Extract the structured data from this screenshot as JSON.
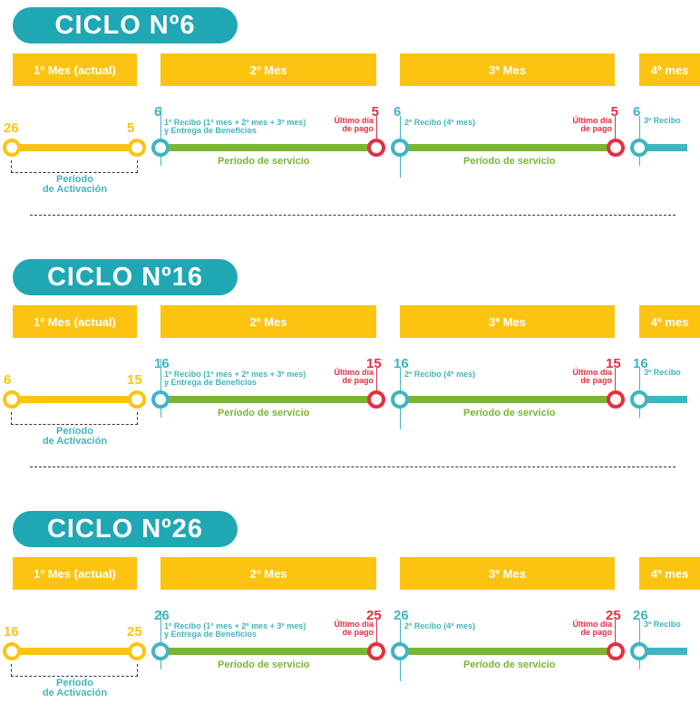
{
  "labels": {
    "month1": "1º Mes (actual)",
    "month2": "2º Mes",
    "month3": "3º Mes",
    "month4": "4º mes",
    "receipt1_line1": "1º Recibo (1º mes + 2º mes + 3º mes)",
    "receipt1_line2": "y  Entrega de Beneficios",
    "receipt2": "2º Recibo (4º mes)",
    "receipt3": "3º Recibo",
    "last_day_line1": "Último día",
    "last_day_line2": "de pago",
    "service_period": "Período de servicio",
    "activation_line1": "Período",
    "activation_line2": "de Activación"
  },
  "colors": {
    "teal": "#1fa8b4",
    "yellow": "#fcc410",
    "green": "#7ab536",
    "red": "#e23040"
  },
  "cycles": [
    {
      "title": "CICLO Nº6",
      "start_day": "26",
      "end_day": "5",
      "receipt_day": "6",
      "due_day": "5"
    },
    {
      "title": "CICLO Nº16",
      "start_day": "6",
      "end_day": "15",
      "receipt_day": "16",
      "due_day": "15"
    },
    {
      "title": "CICLO Nº26",
      "start_day": "16",
      "end_day": "25",
      "receipt_day": "26",
      "due_day": "25"
    }
  ]
}
